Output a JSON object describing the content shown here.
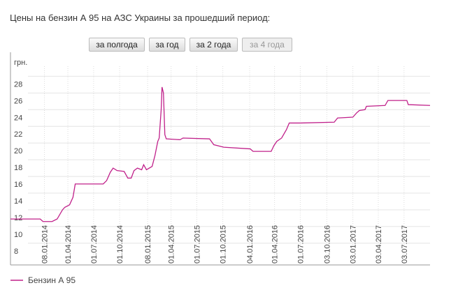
{
  "buttons": [
    "за полгода",
    "за год",
    "за 2 года",
    "за 4 года"
  ],
  "chart_data": {
    "type": "line",
    "title": "Цены на бензин А 95 на АЗС Украины за прошедший период:",
    "ylabel": "грн.",
    "x": [
      "2013-09-10",
      "2013-12-24",
      "2014-01-03",
      "2014-02-04",
      "2014-02-22",
      "2014-03-13",
      "2014-03-21",
      "2014-04-07",
      "2014-04-19",
      "2014-04-27",
      "2014-08-04",
      "2014-08-16",
      "2014-08-29",
      "2014-09-08",
      "2014-09-22",
      "2014-10-17",
      "2014-10-30",
      "2014-11-11",
      "2014-11-21",
      "2014-12-03",
      "2014-12-18",
      "2014-12-25",
      "2015-01-04",
      "2015-01-24",
      "2015-02-03",
      "2015-02-13",
      "2015-02-18",
      "2015-02-25",
      "2015-02-28",
      "2015-03-05",
      "2015-03-10",
      "2015-03-15",
      "2015-05-03",
      "2015-05-13",
      "2015-08-15",
      "2015-08-30",
      "2015-10-04",
      "2016-01-06",
      "2016-01-16",
      "2016-03-20",
      "2016-03-30",
      "2016-04-09",
      "2016-04-26",
      "2016-05-13",
      "2016-05-23",
      "2016-07-02",
      "2016-10-29",
      "2016-11-10",
      "2017-01-03",
      "2017-01-16",
      "2017-01-26",
      "2017-02-15",
      "2017-02-20",
      "2017-04-27",
      "2017-05-07",
      "2017-07-13",
      "2017-07-18",
      "2017-10-03"
    ],
    "series": [
      {
        "name": "Бензин А 95",
        "color": "#c0208a",
        "values": [
          10.9,
          10.9,
          10.6,
          10.6,
          10.9,
          12.0,
          12.3,
          12.6,
          13.5,
          15.1,
          15.1,
          15.5,
          16.5,
          17.0,
          16.7,
          16.6,
          15.8,
          15.8,
          16.7,
          17.0,
          16.8,
          17.4,
          16.8,
          17.2,
          18.5,
          20.2,
          20.6,
          24.0,
          26.7,
          26.0,
          21.0,
          20.5,
          20.4,
          20.6,
          20.5,
          19.8,
          19.5,
          19.3,
          19.0,
          19.0,
          19.7,
          20.2,
          20.6,
          21.6,
          22.4,
          22.4,
          22.5,
          23.0,
          23.1,
          23.6,
          23.9,
          24.0,
          24.4,
          24.5,
          25.1,
          25.1,
          24.6,
          24.5
        ]
      }
    ],
    "xlim": [
      "2013-09-10",
      "2017-10-03"
    ],
    "xticks": [
      {
        "value": "2014-01-08",
        "label": "08.01.2014"
      },
      {
        "value": "2014-04-01",
        "label": "01.04.2014"
      },
      {
        "value": "2014-07-01",
        "label": "01.07.2014"
      },
      {
        "value": "2014-10-01",
        "label": "01.10.2014"
      },
      {
        "value": "2015-01-08",
        "label": "08.01.2015"
      },
      {
        "value": "2015-04-01",
        "label": "01.04.2015"
      },
      {
        "value": "2015-07-01",
        "label": "01.07.2015"
      },
      {
        "value": "2015-10-01",
        "label": "01.10.2015"
      },
      {
        "value": "2016-01-04",
        "label": "04.01.2016"
      },
      {
        "value": "2016-04-01",
        "label": "01.04.2016"
      },
      {
        "value": "2016-07-01",
        "label": "01.07.2016"
      },
      {
        "value": "2016-10-03",
        "label": "03.10.2016"
      },
      {
        "value": "2017-01-03",
        "label": "03.01.2017"
      },
      {
        "value": "2017-04-03",
        "label": "03.04.2017"
      },
      {
        "value": "2017-07-03",
        "label": "03.07.2017"
      }
    ],
    "ylim": [
      5.4,
      29.2
    ],
    "yticks": [
      8,
      10,
      12,
      14,
      16,
      18,
      20,
      22,
      24,
      26,
      28
    ],
    "grid": true
  }
}
